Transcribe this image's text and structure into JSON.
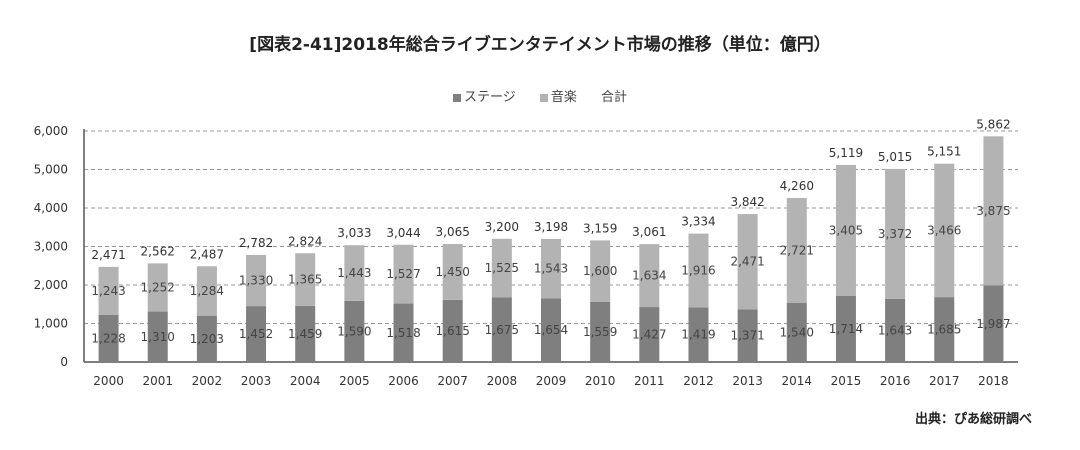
{
  "chart_data": {
    "type": "bar",
    "stacked": true,
    "title": "[図表2-41]2018年総合ライブエンタテイメント市場の推移（単位：億円）",
    "categories": [
      "2000",
      "2001",
      "2002",
      "2003",
      "2004",
      "2005",
      "2006",
      "2007",
      "2008",
      "2009",
      "2010",
      "2011",
      "2012",
      "2013",
      "2014",
      "2015",
      "2016",
      "2017",
      "2018"
    ],
    "series": [
      {
        "name": "ステージ",
        "color": "#7f7f7f",
        "values": [
          1228,
          1310,
          1203,
          1452,
          1459,
          1590,
          1518,
          1615,
          1675,
          1654,
          1559,
          1427,
          1419,
          1371,
          1540,
          1714,
          1643,
          1685,
          1987
        ]
      },
      {
        "name": "音楽",
        "color": "#b3b3b3",
        "values": [
          1243,
          1252,
          1284,
          1330,
          1365,
          1443,
          1527,
          1450,
          1525,
          1543,
          1600,
          1634,
          1916,
          2471,
          2721,
          3405,
          3372,
          3466,
          3875
        ]
      }
    ],
    "totals_label": "合計",
    "totals": [
      2471,
      2562,
      2487,
      2782,
      2824,
      3033,
      3044,
      3065,
      3200,
      3198,
      3159,
      3061,
      3334,
      3842,
      4260,
      5119,
      5015,
      5151,
      5862
    ],
    "ylim": [
      0,
      6000
    ],
    "yticks": [
      0,
      1000,
      2000,
      3000,
      4000,
      5000,
      6000
    ],
    "ytick_labels": [
      "0",
      "1,000",
      "2,000",
      "3,000",
      "4,000",
      "5,000",
      "6,000"
    ],
    "grid": true,
    "legend_position": "top-center",
    "xlabel": "",
    "ylabel": ""
  },
  "source": "出典：ぴあ総研調べ"
}
